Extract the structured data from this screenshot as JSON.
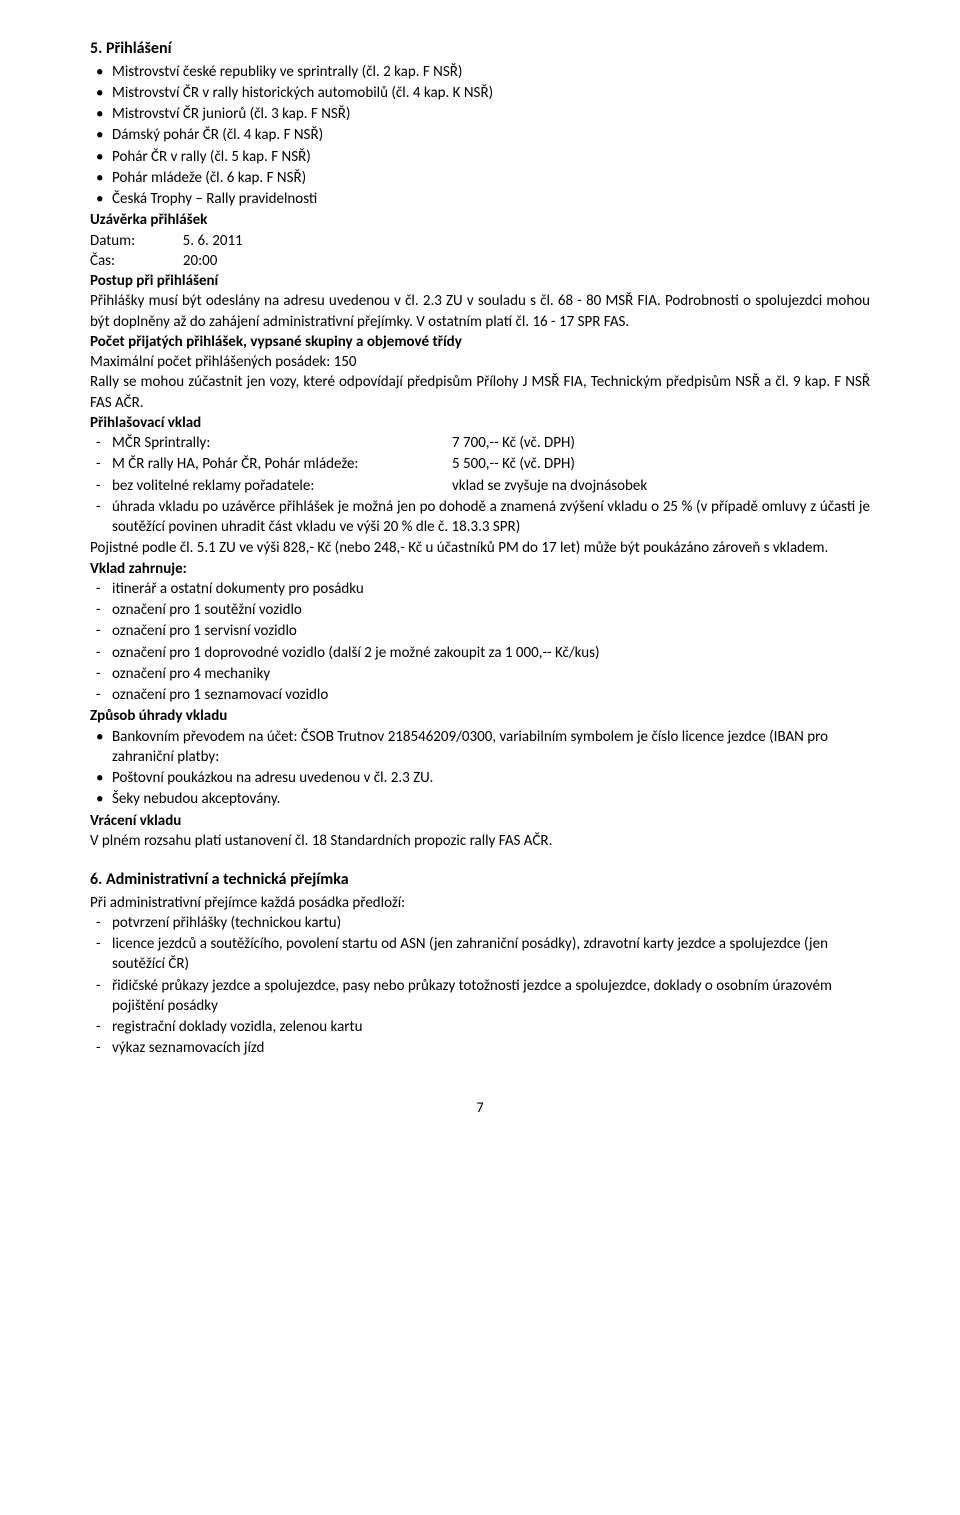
{
  "section5": {
    "title": "5. Přihlášení",
    "championships": [
      "Mistrovství české republiky ve sprintrally (čl. 2 kap. F NSŘ)",
      "Mistrovství ČR v rally historických automobilů (čl. 4 kap. K NSŘ)",
      "Mistrovství ČR juniorů (čl. 3 kap. F NSŘ)",
      "Dámský pohár ČR (čl. 4 kap. F NSŘ)",
      "Pohár ČR v rally (čl. 5 kap. F NSŘ)",
      "Pohár mládeže (čl. 6 kap. F NSŘ)",
      "Česká Trophy – Rally pravidelnosti"
    ],
    "deadline_title": "Uzávěrka přihlášek",
    "datum_label": "Datum:",
    "datum_value": "5. 6. 2011",
    "cas_label": "Čas:",
    "cas_value": "20:00",
    "procedure_title": "Postup při přihlášení",
    "procedure_text": "Přihlášky musí být odeslány na adresu uvedenou v čl. 2.3 ZU v souladu s čl. 68 - 80 MSŘ FIA. Podrobnosti o spolujezdci mohou být doplněny až do zahájení administrativní přejímky. V ostatním platí čl. 16 - 17 SPR FAS.",
    "count_title": "Počet přijatých přihlášek, vypsané skupiny a objemové třídy",
    "count_line1": "Maximální počet přihlášených posádek: 150",
    "count_line2": "Rally se mohou zúčastnit jen vozy, které odpovídají předpisům Přílohy J MSŘ FIA, Technickým předpisům NSŘ a čl. 9 kap. F NSŘ FAS AČR.",
    "fee_title": "Přihlašovací vklad",
    "fees": [
      {
        "label": "MČR Sprintrally:",
        "value": "7 700,-- Kč (vč. DPH)"
      },
      {
        "label": "M ČR rally HA, Pohár ČR, Pohár mládeže:",
        "value": "5 500,-- Kč (vč. DPH)"
      },
      {
        "label": "bez volitelné reklamy pořadatele:",
        "value": "vklad se zvyšuje na dvojnásobek"
      }
    ],
    "fee_extra": "úhrada vkladu po uzávěrce přihlášek je možná jen po dohodě a znamená zvýšení vkladu o 25 % (v případě omluvy z účasti je soutěžící povinen uhradit část vkladu ve výši 20 % dle č. 18.3.3 SPR)",
    "insurance_text": "Pojistné podle čl. 5.1 ZU ve výši 828,- Kč (nebo 248,- Kč u účastníků PM do 17 let) může být poukázáno zároveň s vkladem.",
    "includes_title": "Vklad zahrnuje:",
    "includes": [
      "itinerář a ostatní dokumenty pro posádku",
      "označení pro 1 soutěžní vozidlo",
      "označení pro 1 servisní vozidlo",
      "označení pro 1 doprovodné vozidlo (další 2 je možné zakoupit za 1 000,-- Kč/kus)",
      "označení pro 4 mechaniky",
      "označení pro 1 seznamovací vozidlo"
    ],
    "payment_title": "Způsob úhrady vkladu",
    "payment_methods": [
      "Bankovním převodem na účet: ČSOB Trutnov 218546209/0300, variabilním symbolem je číslo licence jezdce (IBAN pro zahraniční platby:",
      "Poštovní poukázkou na adresu uvedenou v čl. 2.3 ZU.",
      "Šeky nebudou akceptovány."
    ],
    "refund_title": "Vrácení vkladu",
    "refund_text": "V plném rozsahu platí ustanovení čl. 18 Standardních propozic rally FAS AČR."
  },
  "section6": {
    "title": "6. Administrativní a technická přejímka",
    "intro": "Při administrativní přejímce každá posádka předloží:",
    "items": [
      "potvrzení přihlášky (technickou kartu)",
      "licence jezdců a soutěžícího, povolení startu od ASN (jen zahraniční posádky), zdravotní karty jezdce a spolujezdce (jen soutěžící ČR)",
      "řidičské průkazy jezdce a spolujezdce, pasy nebo průkazy totožnosti jezdce a spolujezdce, doklady o osobním úrazovém pojištění posádky",
      "registrační doklady vozidla, zelenou kartu",
      "výkaz seznamovacích jízd"
    ]
  },
  "pageNumber": "7"
}
